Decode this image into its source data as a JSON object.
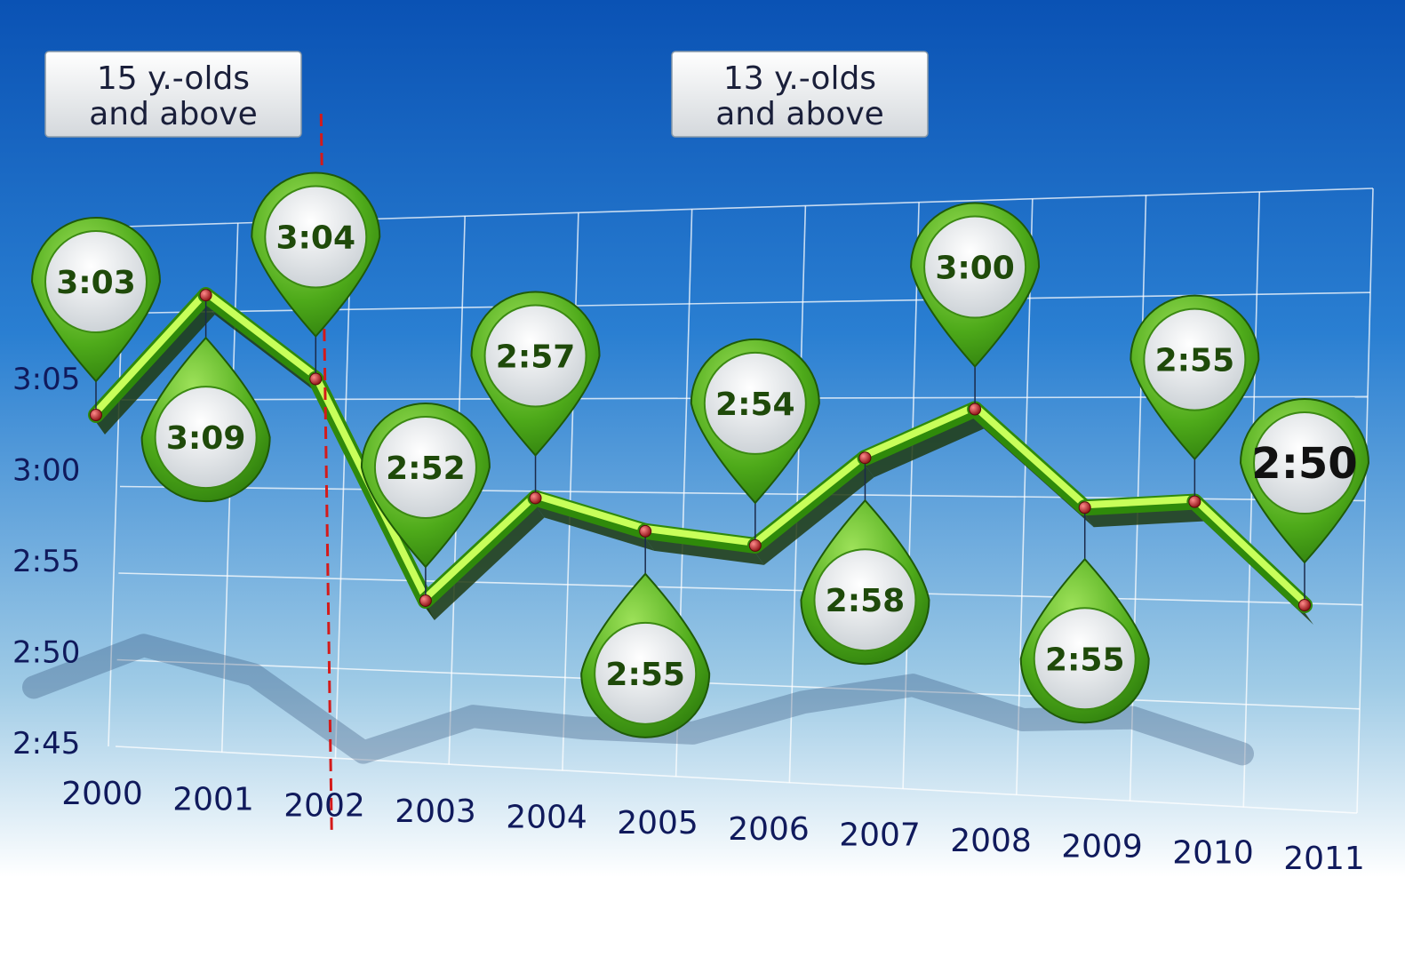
{
  "chart_data": {
    "type": "line",
    "x": [
      "2000",
      "2001",
      "2002",
      "2003",
      "2004",
      "2005",
      "2006",
      "2007",
      "2008",
      "2009",
      "2010",
      "2011"
    ],
    "series": [
      {
        "values": [
          "3:03",
          "3:09",
          "3:04",
          "2:52",
          "2:57",
          "2:55",
          "2:54",
          "2:58",
          "3:00",
          "2:55",
          "2:55",
          "2:50"
        ]
      }
    ],
    "y_tick_labels": [
      "3:05",
      "3:00",
      "2:55",
      "2:50",
      "2:45"
    ],
    "x_tick_labels": [
      "2000",
      "2001",
      "2002",
      "2003",
      "2004",
      "2005",
      "2006",
      "2007",
      "2008",
      "2009",
      "2010",
      "2011"
    ],
    "annotations": [
      {
        "label": "15 y.-olds\nand above"
      },
      {
        "label": "13 y.-olds\nand above"
      }
    ],
    "divider_after": "2002",
    "grid": true,
    "colors": {
      "line": "#6cc81e",
      "marker": "#c4161c",
      "divider": "#d41a1a",
      "bg_top": "#0a52b4",
      "bg_bottom": "#ffffff",
      "text": "#101a5c"
    }
  }
}
